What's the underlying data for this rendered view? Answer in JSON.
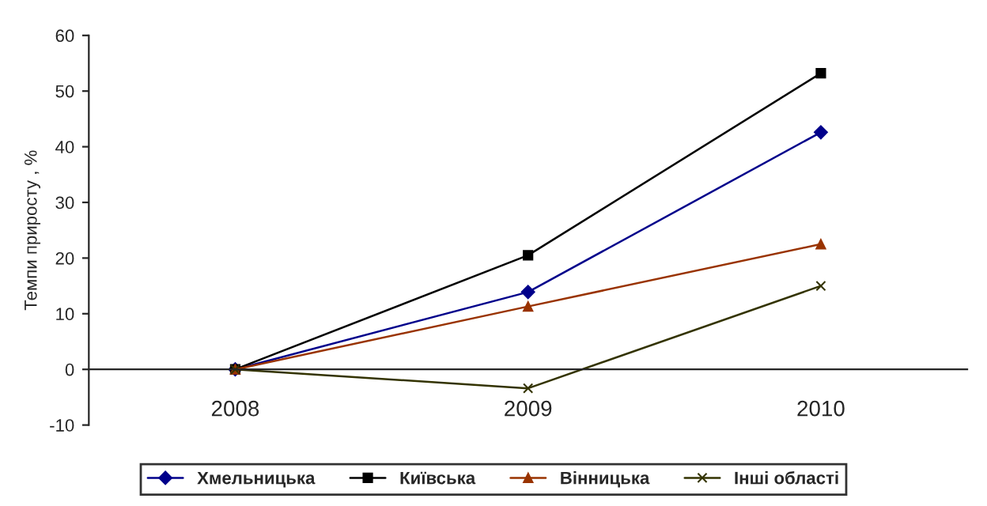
{
  "chart_data": {
    "type": "line",
    "ylabel": "Темпи приросту , %",
    "categories": [
      "2008",
      "2009",
      "2010"
    ],
    "series": [
      {
        "name": "Хмельницька",
        "color": "#00008b",
        "values": [
          0,
          13.9,
          42.6
        ],
        "marker": "diamond"
      },
      {
        "name": "Київська",
        "color": "#000000",
        "values": [
          0,
          20.5,
          53.2
        ],
        "marker": "square"
      },
      {
        "name": "Вінницька",
        "color": "#993300",
        "values": [
          0,
          11.3,
          22.5
        ],
        "marker": "triangle"
      },
      {
        "name": "Інші області",
        "color": "#333300",
        "values": [
          0,
          -3.4,
          15.0
        ],
        "marker": "cross"
      }
    ],
    "ylim": [
      -10,
      60
    ],
    "yticks": [
      -10,
      0,
      10,
      20,
      30,
      40,
      50,
      60
    ],
    "grid": false,
    "legend": "bottom",
    "line_style": "solid"
  }
}
